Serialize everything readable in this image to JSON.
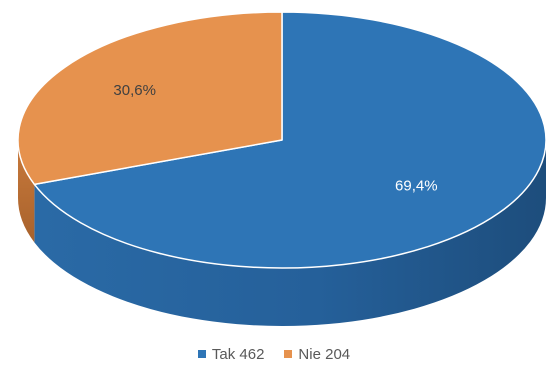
{
  "chart_data": {
    "type": "pie",
    "style": "3d",
    "slices": [
      {
        "label": "Tak",
        "value": 462,
        "percent_label": "69,4%",
        "color": "#2e75b6",
        "side_color": "#22578a",
        "label_color": "#ffffff"
      },
      {
        "label": "Nie",
        "value": 204,
        "percent_label": "30,6%",
        "color": "#e6924e",
        "side_color": "#b86e34",
        "label_color": "#404040"
      }
    ],
    "legend": {
      "placement": "bottom",
      "items": [
        {
          "text": "Tak 462",
          "color": "#2e75b6"
        },
        {
          "text": "Nie 204",
          "color": "#e6924e"
        }
      ]
    }
  }
}
